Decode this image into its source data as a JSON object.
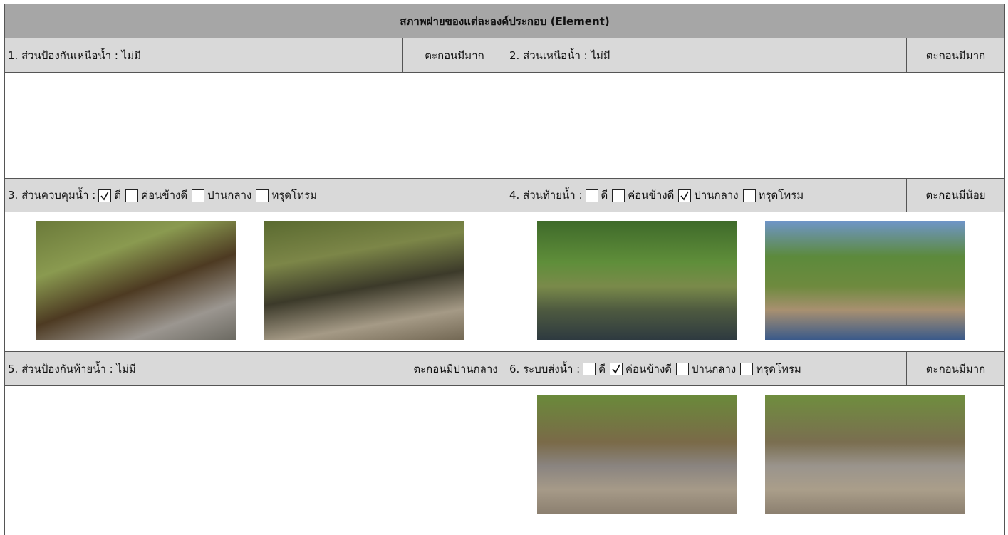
{
  "title": "สภาพฝายของแต่ละองค์ประกอบ (Element)",
  "sections": [
    {
      "label": "1. ส่วนป้องกันเหนือน้ำ : ไม่มี",
      "status": "ตะกอนมีมาก"
    },
    {
      "label": "2. ส่วนเหนือน้ำ : ไม่มี",
      "status": "ตะกอนมีมาก"
    },
    {
      "label": "3. ส่วนควบคุมน้ำ :",
      "options": [
        {
          "text": "ดี",
          "checked": true
        },
        {
          "text": "ค่อนข้างดี",
          "checked": false
        },
        {
          "text": "ปานกลาง",
          "checked": false
        },
        {
          "text": "ทรุดโทรม",
          "checked": false
        }
      ]
    },
    {
      "label": "4. ส่วนท้ายน้ำ :",
      "status": "ตะกอนมีน้อย",
      "options": [
        {
          "text": "ดี",
          "checked": false
        },
        {
          "text": "ค่อนข้างดี",
          "checked": false
        },
        {
          "text": "ปานกลาง",
          "checked": true
        },
        {
          "text": "ทรุดโทรม",
          "checked": false
        }
      ]
    },
    {
      "label": "5. ส่วนป้องกันท้ายน้ำ : ไม่มี",
      "status": "ตะกอนมีปานกลาง"
    },
    {
      "label": "6. ระบบส่งน้ำ :",
      "status": "ตะกอนมีมาก",
      "options": [
        {
          "text": "ดี",
          "checked": false
        },
        {
          "text": "ค่อนข้างดี",
          "checked": true
        },
        {
          "text": "ปานกลาง",
          "checked": false
        },
        {
          "text": "ทรุดโทรม",
          "checked": false
        }
      ]
    }
  ]
}
